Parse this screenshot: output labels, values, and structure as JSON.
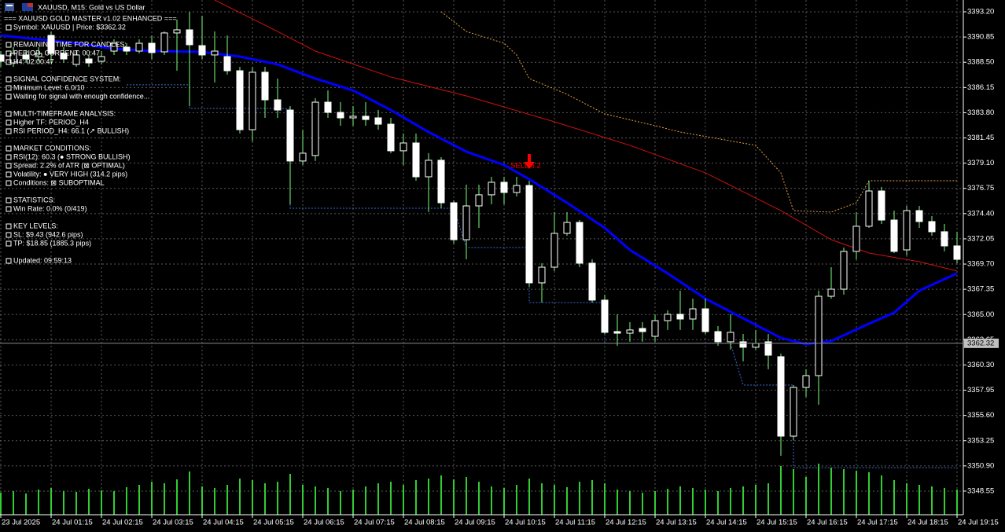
{
  "window": {
    "title": "XAUUSD, M15:  Gold vs US Dollar"
  },
  "info_panel": {
    "sections": [
      [
        "=== XAUUSD GOLD MASTER v1.02 ENHANCED ===",
        "Symbol: XAUUSD | Price: $3362.32"
      ],
      [
        "REMAINING TIME FOR CANDLES:",
        "PERIOD_CURRENT: 00:47",
        "H4: 02:00:47"
      ],
      [
        "SIGNAL CONFIDENCE SYSTEM:",
        "Minimum Level: 6.0/10",
        "Waiting for signal with enough confidence..."
      ],
      [
        "MULTI-TIMEFRAME ANALYSIS:",
        "Higher TF: PERIOD_H4",
        "RSI PERIOD_H4: 66.1 (↗ BULLISH)"
      ],
      [
        "MARKET CONDITIONS:",
        "RSI(12): 60.3 (● STRONG BULLISH)",
        "Spread: 2.2% of ATR (⊠ OPTIMAL)",
        "Volatility: ● VERY HIGH (314.2 pips)",
        "Conditions: ⊠ SUBOPTIMAL"
      ],
      [
        "STATISTICS:",
        "Win Rate: 0.0% (0/419)"
      ],
      [
        "KEY LEVELS:",
        "SL: $9.43 (942.6 pips)",
        "TP: $18.85 (1885.3 pips)"
      ],
      [
        "Updated: 09:59:13"
      ]
    ]
  },
  "chart_data": {
    "type": "candlestick",
    "categories": [
      "23 Jul 2025",
      null,
      null,
      null,
      "24 Jul 01:15",
      null,
      null,
      null,
      "24 Jul 02:15",
      null,
      null,
      null,
      "24 Jul 03:15",
      null,
      null,
      null,
      "24 Jul 04:15",
      null,
      null,
      null,
      "24 Jul 05:15",
      null,
      null,
      null,
      "24 Jul 06:15",
      null,
      null,
      null,
      "24 Jul 07:15",
      null,
      null,
      null,
      "24 Jul 08:15",
      null,
      null,
      null,
      "24 Jul 09:15",
      null,
      null,
      null,
      "24 Jul 10:15",
      null,
      null,
      null,
      "24 Jul 11:15",
      null,
      null,
      null,
      "24 Jul 12:15",
      null,
      null,
      null,
      "24 Jul 13:15",
      null,
      null,
      null,
      "24 Jul 14:15",
      null,
      null,
      null,
      "24 Jul 15:15",
      null,
      null,
      null,
      "24 Jul 16:15",
      null,
      null,
      null,
      "24 Jul 17:15",
      null,
      null,
      null,
      "24 Jul 18:15",
      null,
      null,
      null,
      "24 Jul 19:15"
    ],
    "open": [
      3389.18,
      3388.44,
      3389.18,
      3389.03,
      3391.0,
      3389.32,
      3388.3,
      3388.81,
      3388.59,
      3389.54,
      3389.91,
      3389.54,
      3390.27,
      3389.47,
      3391.23,
      3391.52,
      3390.05,
      3389.18,
      3389.03,
      3387.71,
      3382.22,
      3387.57,
      3385.0,
      3384.05,
      3379.3,
      3379.81,
      3384.78,
      3383.83,
      3383.32,
      3383.47,
      3383.32,
      3382.73,
      3380.25,
      3380.98,
      3377.83,
      3379.37,
      3375.41,
      3371.97,
      3375.12,
      3376.15,
      3377.32,
      3376.37,
      3377.02,
      3367.95,
      3369.41,
      3372.56,
      3373.58,
      3369.78,
      3366.34,
      3363.41,
      3363.26,
      3363.7,
      3362.97,
      3364.43,
      3365.02,
      3364.58,
      3365.53,
      3363.41,
      3362.46,
      3362.46,
      3361.95,
      3362.46,
      3361.07,
      3353.67,
      3358.21,
      3359.31,
      3366.7,
      3367.36,
      3370.88,
      3373.22,
      3376.51,
      3373.8,
      3371.02,
      3374.68,
      3373.66,
      3372.71,
      3371.39
    ],
    "high": [
      3389.54,
      3389.91,
      3389.54,
      3389.91,
      3391.37,
      3389.91,
      3389.54,
      3389.18,
      3389.54,
      3390.64,
      3390.27,
      3390.64,
      3391.0,
      3391.37,
      3392.47,
      3393.2,
      3392.84,
      3391.37,
      3391.0,
      3388.08,
      3388.08,
      3388.08,
      3386.98,
      3384.42,
      3382.22,
      3385.15,
      3385.88,
      3384.78,
      3384.42,
      3384.78,
      3384.05,
      3383.32,
      3381.86,
      3381.86,
      3380.03,
      3379.66,
      3375.63,
      3377.1,
      3377.1,
      3377.83,
      3377.83,
      3377.83,
      3377.46,
      3369.78,
      3374.54,
      3374.54,
      3373.8,
      3370.14,
      3366.85,
      3365.02,
      3364.29,
      3364.29,
      3365.02,
      3365.39,
      3367.22,
      3366.48,
      3366.48,
      3363.92,
      3365.02,
      3363.19,
      3363.56,
      3363.19,
      3361.36,
      3358.43,
      3359.9,
      3367.22,
      3369.41,
      3371.24,
      3374.54,
      3377.46,
      3376.88,
      3374.68,
      3375.12,
      3375.12,
      3374.17,
      3373.44,
      3372.71
    ],
    "low": [
      3388.08,
      3388.08,
      3388.44,
      3388.59,
      3388.44,
      3388.44,
      3388.08,
      3388.08,
      3388.3,
      3389.18,
      3389.18,
      3389.32,
      3388.81,
      3389.18,
      3387.71,
      3384.42,
      3388.81,
      3386.61,
      3387.35,
      3381.86,
      3381.12,
      3383.32,
      3383.32,
      3375.27,
      3378.93,
      3379.3,
      3383.32,
      3382.59,
      3382.59,
      3382.59,
      3382.22,
      3380.03,
      3378.93,
      3377.46,
      3374.54,
      3374.9,
      3371.61,
      3370.14,
      3373.07,
      3375.27,
      3375.27,
      3376.0,
      3367.58,
      3366.12,
      3369.05,
      3372.34,
      3369.41,
      3366.12,
      3363.19,
      3362.09,
      3362.46,
      3362.46,
      3362.46,
      3363.56,
      3363.56,
      3363.56,
      3363.19,
      3362.09,
      3361.73,
      3360.63,
      3361.73,
      3359.9,
      3351.84,
      3353.31,
      3357.33,
      3356.6,
      3366.48,
      3366.85,
      3370.14,
      3373.07,
      3373.44,
      3370.73,
      3370.51,
      3373.07,
      3372.34,
      3370.88,
      3369.78
    ],
    "close": [
      3388.59,
      3389.32,
      3388.81,
      3389.32,
      3389.32,
      3388.81,
      3389.18,
      3388.44,
      3389.03,
      3390.27,
      3389.54,
      3390.27,
      3389.4,
      3391.23,
      3391.52,
      3390.13,
      3389.18,
      3389.54,
      3387.71,
      3382.22,
      3387.57,
      3385.0,
      3384.05,
      3379.3,
      3380.03,
      3384.78,
      3383.83,
      3383.32,
      3383.47,
      3383.17,
      3382.73,
      3380.25,
      3380.98,
      3377.83,
      3379.37,
      3375.41,
      3371.97,
      3375.12,
      3376.15,
      3377.32,
      3376.37,
      3377.02,
      3367.95,
      3369.41,
      3372.56,
      3373.58,
      3369.78,
      3366.34,
      3363.34,
      3363.26,
      3363.56,
      3363.41,
      3364.43,
      3365.02,
      3364.58,
      3365.53,
      3363.41,
      3362.46,
      3363.34,
      3361.95,
      3362.31,
      3361.21,
      3353.67,
      3358.21,
      3359.31,
      3366.7,
      3367.36,
      3370.88,
      3373.22,
      3376.51,
      3373.8,
      3370.88,
      3374.68,
      3373.66,
      3372.71,
      3371.39,
      3370.14
    ],
    "bull_color": "#000000",
    "bear_color": "#ffffff",
    "outline_color": "#ffffff",
    "wick_color": "#7dff7d",
    "volumes": [
      28,
      30,
      27,
      32,
      34,
      30,
      29,
      33,
      31,
      30,
      35,
      38,
      42,
      40,
      45,
      55,
      36,
      34,
      38,
      46,
      44,
      40,
      42,
      52,
      38,
      36,
      34,
      30,
      32,
      36,
      40,
      42,
      38,
      44,
      46,
      50,
      45,
      48,
      42,
      36,
      34,
      38,
      46,
      40,
      38,
      35,
      42,
      44,
      40,
      32,
      30,
      28,
      30,
      33,
      36,
      34,
      32,
      30,
      34,
      36,
      38,
      40,
      62,
      58,
      48,
      65,
      60,
      58,
      56,
      54,
      50,
      44,
      40,
      38,
      36,
      34,
      32
    ],
    "volume_color": "#32cd32",
    "volume_ylim": [
      0,
      100
    ],
    "lines": [
      {
        "color": "#0000ff",
        "style": "solid",
        "weight": "thick",
        "x": [
          0,
          6,
          9,
          12,
          16,
          19,
          22,
          25,
          28,
          31,
          34,
          37,
          40,
          42,
          45,
          48,
          50,
          53,
          56,
          59,
          62,
          64,
          66,
          69,
          71,
          73,
          76
        ],
        "values": [
          3391.0,
          3390.27,
          3389.76,
          3389.54,
          3389.47,
          3389.03,
          3388.3,
          3386.98,
          3385.88,
          3384.05,
          3382.0,
          3380.17,
          3378.93,
          3377.61,
          3375.41,
          3373.07,
          3371.02,
          3368.83,
          3366.48,
          3364.65,
          3362.82,
          3362.24,
          3362.53,
          3364.14,
          3365.17,
          3367.22,
          3368.83
        ]
      },
      {
        "color": "#d01010",
        "style": "solid",
        "weight": "thin",
        "x": [
          17,
          22,
          25,
          31,
          37,
          44,
          50,
          56,
          62,
          66,
          69,
          73,
          76
        ],
        "values": [
          3394.3,
          3391.37,
          3389.54,
          3387.13,
          3385.37,
          3382.95,
          3380.76,
          3378.2,
          3374.68,
          3371.97,
          3370.73,
          3369.92,
          3369.05
        ]
      },
      {
        "color": "#e8a040",
        "style": "dotted",
        "weight": "thin",
        "x": [
          35,
          37,
          40,
          41,
          42,
          45,
          48,
          52,
          54,
          60,
          62,
          63,
          66,
          68,
          69,
          76
        ],
        "values": [
          3393.2,
          3391.37,
          3390.27,
          3389.18,
          3386.98,
          3385.52,
          3383.69,
          3382.59,
          3382.0,
          3380.76,
          3378.2,
          3374.68,
          3374.54,
          3375.41,
          3377.46,
          3377.46
        ]
      },
      {
        "color": "#3a6cd8",
        "style": "dotted",
        "weight": "thin",
        "x": [
          10,
          15,
          15,
          23,
          23,
          36,
          37,
          42,
          42,
          48,
          48,
          58,
          59,
          63,
          63,
          76
        ],
        "values": [
          3386.4,
          3386.4,
          3384.2,
          3384.2,
          3374.9,
          3374.9,
          3371.24,
          3371.24,
          3366.12,
          3366.12,
          3362.31,
          3362.31,
          3358.43,
          3358.43,
          3350.72,
          3350.72
        ]
      }
    ],
    "current_price": {
      "value": 3362.32,
      "label": "3362.32"
    },
    "annotations": [
      {
        "text": "SELL 6.2",
        "x": 42,
        "value": 3378.93,
        "color": "#ff0000"
      }
    ],
    "ylim": [
      3346.35,
      3394.3
    ],
    "yticks": [
      {
        "value": 3393.2,
        "label": "3393.20"
      },
      {
        "value": 3390.85,
        "label": "3390.85"
      },
      {
        "value": 3388.5,
        "label": "3388.50"
      },
      {
        "value": 3386.15,
        "label": "3386.15"
      },
      {
        "value": 3383.8,
        "label": "3383.80"
      },
      {
        "value": 3381.45,
        "label": "3381.45"
      },
      {
        "value": 3379.1,
        "label": "3379.10"
      },
      {
        "value": 3376.75,
        "label": "3376.75"
      },
      {
        "value": 3374.4,
        "label": "3374.40"
      },
      {
        "value": 3372.05,
        "label": "3372.05"
      },
      {
        "value": 3369.7,
        "label": "3369.70"
      },
      {
        "value": 3367.35,
        "label": "3367.35"
      },
      {
        "value": 3365.0,
        "label": "3365.00"
      },
      {
        "value": 3362.65,
        "label": "3362.65"
      },
      {
        "value": 3360.3,
        "label": "3360.30"
      },
      {
        "value": 3357.95,
        "label": "3357.95"
      },
      {
        "value": 3355.6,
        "label": "3355.60"
      },
      {
        "value": 3353.25,
        "label": "3353.25"
      },
      {
        "value": 3350.9,
        "label": "3350.90"
      },
      {
        "value": 3348.55,
        "label": "3348.55"
      }
    ],
    "grid": true
  }
}
